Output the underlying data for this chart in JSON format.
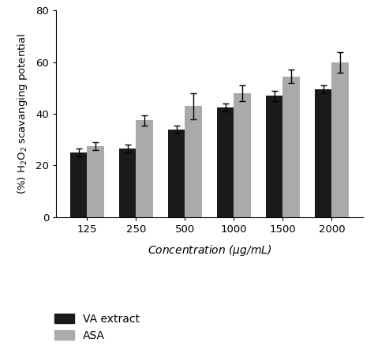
{
  "concentrations": [
    125,
    250,
    500,
    1000,
    1500,
    2000
  ],
  "va_values": [
    25.0,
    26.5,
    34.0,
    42.5,
    47.0,
    49.5
  ],
  "asa_values": [
    27.5,
    37.5,
    43.0,
    48.0,
    54.5,
    60.0
  ],
  "va_errors": [
    1.5,
    1.5,
    1.5,
    1.5,
    2.0,
    1.5
  ],
  "asa_errors": [
    1.5,
    2.0,
    5.0,
    3.0,
    2.5,
    4.0
  ],
  "va_color": "#1a1a1a",
  "asa_color": "#aaaaaa",
  "xlabel": "Concentration ($\\mu$g/mL)",
  "ylabel": "(%) H$_2$O$_2$ scavanging potential",
  "ylim": [
    0,
    80
  ],
  "yticks": [
    0,
    20,
    40,
    60,
    80
  ],
  "bar_width": 0.35,
  "legend_labels": [
    "VA extract",
    "ASA"
  ],
  "background_color": "#ffffff",
  "capsize": 3
}
